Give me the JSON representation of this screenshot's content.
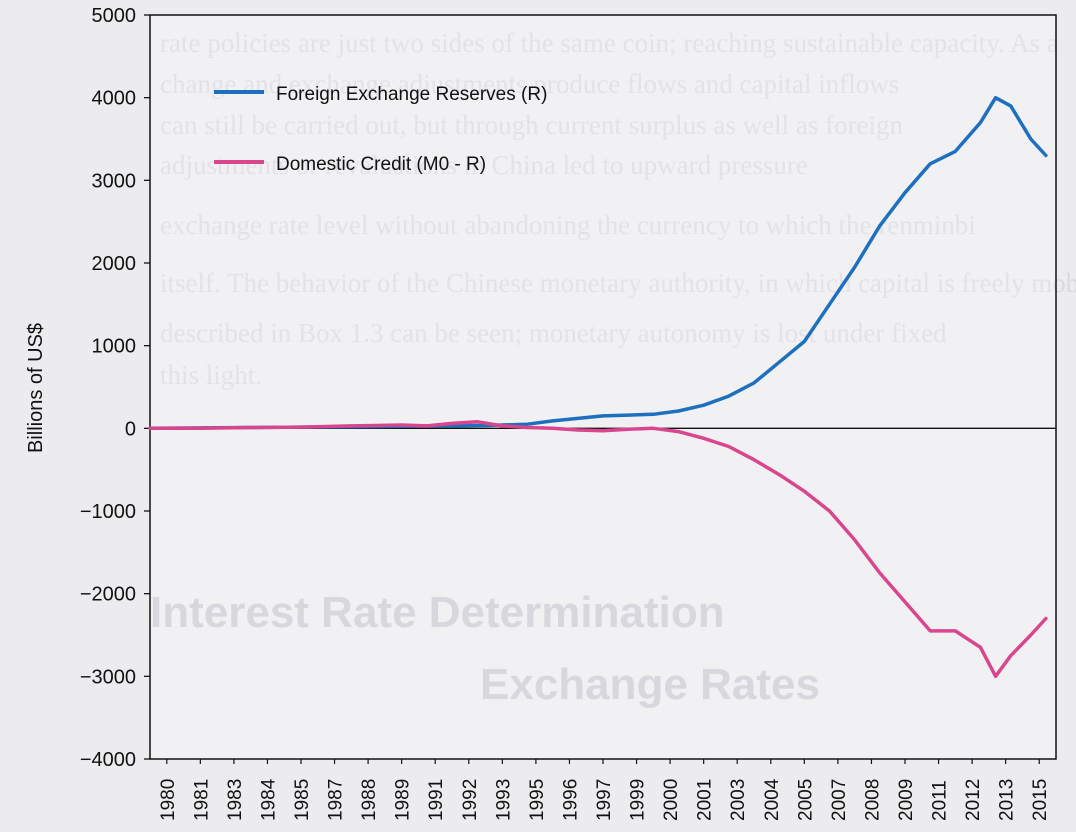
{
  "background_text": [
    "rate policies are just two sides of the same coin; reaching sustainable capacity. As a",
    "change and exchange adjustments produce flows and capital inflows",
    "can still be carried out, but through current surplus as well as foreign",
    "adjustments or revaluations in China led to upward pressure",
    "exchange rate level without abandoning the currency to which the renminbi",
    "itself. The behavior of the Chinese monetary authority, in which capital is freely mobile",
    "described in Box 1.3 can be seen; monetary autonomy is lost under fixed",
    "this light."
  ],
  "background_heading": [
    "Interest Rate Determination",
    "Exchange Rates"
  ],
  "chart_data": {
    "type": "line",
    "ylabel": "Billions of US$",
    "ylim": [
      -4000,
      5000
    ],
    "xlim": [
      1980,
      2016
    ],
    "yticks": [
      -4000,
      -3000,
      -2000,
      -1000,
      0,
      1000,
      2000,
      3000,
      4000,
      5000
    ],
    "ytick_labels": [
      "−4000",
      "−3000",
      "−2000",
      "−1000",
      "0",
      "1000",
      "2000",
      "3000",
      "4000",
      "5000"
    ],
    "xtick_labels": [
      "1980",
      "1981",
      "1983",
      "1984",
      "1985",
      "1987",
      "1988",
      "1989",
      "1991",
      "1992",
      "1993",
      "1995",
      "1996",
      "1997",
      "1999",
      "2000",
      "2001",
      "2003",
      "2004",
      "2005",
      "2007",
      "2008",
      "2009",
      "2011",
      "2012",
      "2013",
      "2015"
    ],
    "zero_line": true,
    "grid": false,
    "legend_position": "top-left",
    "series": [
      {
        "name": "Foreign Exchange Reserves (R)",
        "color": "#1f6fbf",
        "points": [
          [
            1980,
            0
          ],
          [
            1982,
            5
          ],
          [
            1984,
            10
          ],
          [
            1986,
            15
          ],
          [
            1988,
            20
          ],
          [
            1990,
            25
          ],
          [
            1992,
            30
          ],
          [
            1993.5,
            35
          ],
          [
            1995,
            50
          ],
          [
            1996,
            90
          ],
          [
            1997,
            120
          ],
          [
            1998,
            150
          ],
          [
            1999,
            160
          ],
          [
            2000,
            170
          ],
          [
            2001,
            210
          ],
          [
            2002,
            280
          ],
          [
            2003,
            390
          ],
          [
            2004,
            550
          ],
          [
            2005,
            800
          ],
          [
            2006,
            1050
          ],
          [
            2007,
            1500
          ],
          [
            2008,
            1950
          ],
          [
            2009,
            2450
          ],
          [
            2010,
            2850
          ],
          [
            2011,
            3200
          ],
          [
            2012,
            3350
          ],
          [
            2013,
            3700
          ],
          [
            2013.6,
            4000
          ],
          [
            2014.2,
            3900
          ],
          [
            2015,
            3500
          ],
          [
            2015.6,
            3300
          ]
        ]
      },
      {
        "name": "Domestic Credit (M0 - R)",
        "color": "#d9468e",
        "points": [
          [
            1980,
            0
          ],
          [
            1982,
            0
          ],
          [
            1984,
            10
          ],
          [
            1986,
            15
          ],
          [
            1988,
            30
          ],
          [
            1990,
            40
          ],
          [
            1991,
            30
          ],
          [
            1992,
            60
          ],
          [
            1993,
            80
          ],
          [
            1994,
            30
          ],
          [
            1995,
            10
          ],
          [
            1996,
            0
          ],
          [
            1997,
            -20
          ],
          [
            1998,
            -30
          ],
          [
            1999,
            -10
          ],
          [
            2000,
            0
          ],
          [
            2001,
            -40
          ],
          [
            2002,
            -120
          ],
          [
            2003,
            -220
          ],
          [
            2004,
            -380
          ],
          [
            2005,
            -560
          ],
          [
            2006,
            -760
          ],
          [
            2007,
            -1000
          ],
          [
            2008,
            -1350
          ],
          [
            2009,
            -1750
          ],
          [
            2010,
            -2100
          ],
          [
            2011,
            -2450
          ],
          [
            2012,
            -2450
          ],
          [
            2013,
            -2650
          ],
          [
            2013.6,
            -3000
          ],
          [
            2014.2,
            -2750
          ],
          [
            2015,
            -2500
          ],
          [
            2015.6,
            -2300
          ]
        ]
      }
    ]
  }
}
